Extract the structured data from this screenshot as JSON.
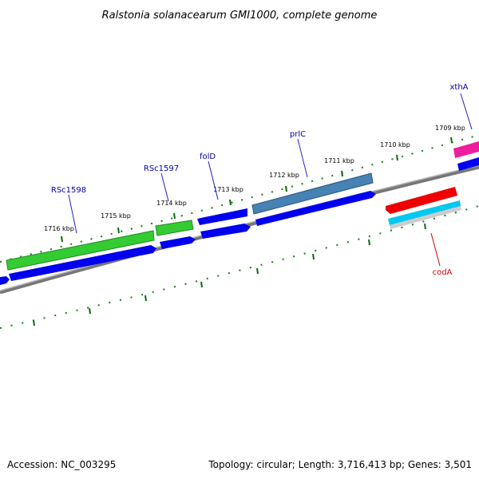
{
  "map": {
    "title": "Ralstonia solanacearum GMI1000, complete genome",
    "accession_text": "Accession: NC_003295",
    "summary_text": "Topology: circular; Length: 3,716,413 bp; Genes: 3,501"
  },
  "ticks": {
    "outer": [
      "1709 kbp",
      "1710 kbp",
      "1711 kbp",
      "1712 kbp",
      "1713 kbp",
      "1714 kbp",
      "1715 kbp",
      "1716 kbp"
    ]
  },
  "genes": {
    "labels": [
      "xthA",
      "prlC",
      "folD",
      "RSc1597",
      "RSc1598",
      "codA"
    ]
  },
  "colors": {
    "forward_cds": "#0000ee",
    "green_feature": "#33cc33",
    "prlc_feature": "#4682b4",
    "xtha_feature": "#ee1e9e",
    "coda_feature": "#ee0000",
    "coda_subfeature": "#00c8f0",
    "backbone": "#808080",
    "tick_green": "#006400",
    "label_blue": "#0000aa",
    "label_red": "#cc0000"
  }
}
